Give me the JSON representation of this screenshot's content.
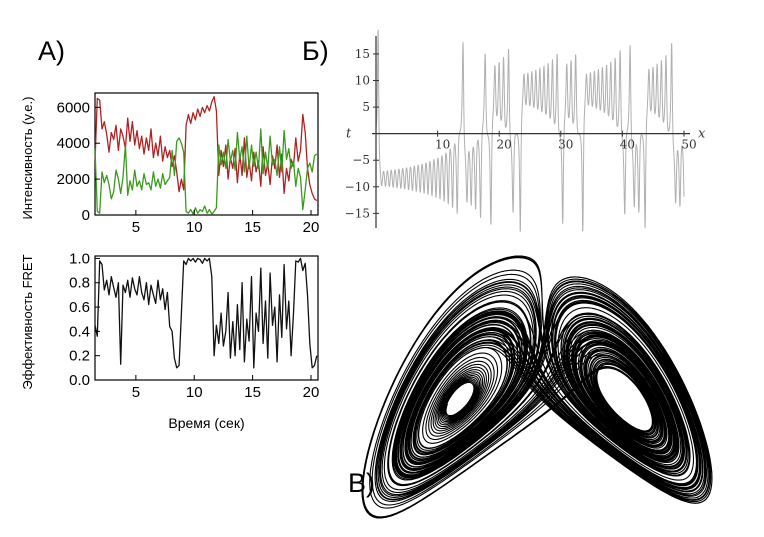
{
  "panels": {
    "a_label": "А)",
    "b_label": "Б)",
    "v_label": "В)"
  },
  "chart_data": [
    {
      "id": "intensity",
      "type": "line",
      "xlabel": "",
      "ylabel": "Интенсивность (у.е.)",
      "xlim": [
        1.5,
        20.6
      ],
      "ylim": [
        0,
        6800
      ],
      "xticks": [
        5,
        10,
        15,
        20
      ],
      "yticks": [
        0,
        2000,
        4000,
        6000
      ],
      "grid": false,
      "colors": {
        "red": "#b02222",
        "green": "#3a9a1e"
      },
      "series": [
        {
          "color": "#b02222",
          "x": [
            1.5,
            1.7,
            1.9,
            2.1,
            2.3,
            2.5,
            2.7,
            2.9,
            3.1,
            3.3,
            3.5,
            3.7,
            3.9,
            4.1,
            4.3,
            4.5,
            4.7,
            4.9,
            5.1,
            5.3,
            5.5,
            5.7,
            5.9,
            6.1,
            6.3,
            6.5,
            6.7,
            6.9,
            7.1,
            7.3,
            7.5,
            7.7,
            7.9,
            8.1,
            8.3,
            8.5,
            8.7,
            8.9,
            9.1,
            9.3,
            9.5,
            9.7,
            9.9,
            10.1,
            10.3,
            10.5,
            10.7,
            10.9,
            11.1,
            11.3,
            11.5,
            11.7,
            11.9,
            12.1,
            12.3,
            12.5,
            12.7,
            12.9,
            13.1,
            13.3,
            13.5,
            13.7,
            13.9,
            14.1,
            14.3,
            14.5,
            14.7,
            14.9,
            15.1,
            15.3,
            15.5,
            15.7,
            15.9,
            16.1,
            16.3,
            16.5,
            16.7,
            16.9,
            17.1,
            17.3,
            17.5,
            17.7,
            17.9,
            18.1,
            18.3,
            18.5,
            18.7,
            18.9,
            19.1,
            19.3,
            19.5,
            19.7,
            19.9,
            20.1,
            20.3,
            20.5
          ],
          "values": [
            3000,
            6500,
            6400,
            4800,
            5200,
            4500,
            3500,
            4600,
            4200,
            5000,
            3600,
            4800,
            4400,
            3700,
            5400,
            4100,
            5200,
            3900,
            4700,
            3700,
            4400,
            3400,
            4300,
            3600,
            4800,
            3200,
            4000,
            3300,
            4400,
            3000,
            3800,
            3200,
            3600,
            2700,
            3300,
            2400,
            1300,
            2000,
            1400,
            5000,
            5600,
            5100,
            5700,
            5300,
            5900,
            5500,
            6000,
            5700,
            6100,
            5800,
            6300,
            6600,
            5800,
            2200,
            3600,
            2700,
            3900,
            2000,
            3200,
            2600,
            3700,
            1800,
            3400,
            2200,
            4300,
            2100,
            3000,
            1900,
            3500,
            2400,
            3000,
            1600,
            3800,
            2200,
            2900,
            1700,
            3300,
            2600,
            3900,
            2100,
            3400,
            1200,
            2600,
            1900,
            3100,
            2700,
            4300,
            3000,
            3600,
            5600,
            4600,
            2600,
            1700,
            1200,
            900,
            800
          ]
        },
        {
          "color": "#3a9a1e",
          "x": [
            1.5,
            1.7,
            1.9,
            2.1,
            2.3,
            2.5,
            2.7,
            2.9,
            3.1,
            3.3,
            3.5,
            3.7,
            3.9,
            4.1,
            4.3,
            4.5,
            4.7,
            4.9,
            5.1,
            5.3,
            5.5,
            5.7,
            5.9,
            6.1,
            6.3,
            6.5,
            6.7,
            6.9,
            7.1,
            7.3,
            7.5,
            7.7,
            7.9,
            8.1,
            8.3,
            8.5,
            8.7,
            8.9,
            9.1,
            9.3,
            9.5,
            9.7,
            9.9,
            10.1,
            10.3,
            10.5,
            10.7,
            10.9,
            11.1,
            11.3,
            11.5,
            11.7,
            11.9,
            12.1,
            12.3,
            12.5,
            12.7,
            12.9,
            13.1,
            13.3,
            13.5,
            13.7,
            13.9,
            14.1,
            14.3,
            14.5,
            14.7,
            14.9,
            15.1,
            15.3,
            15.5,
            15.7,
            15.9,
            16.1,
            16.3,
            16.5,
            16.7,
            16.9,
            17.1,
            17.3,
            17.5,
            17.7,
            17.9,
            18.1,
            18.3,
            18.5,
            18.7,
            18.9,
            19.1,
            19.3,
            19.5,
            19.7,
            19.9,
            20.1,
            20.3,
            20.5
          ],
          "values": [
            3700,
            200,
            100,
            2400,
            1800,
            2200,
            1700,
            900,
            1300,
            2500,
            2000,
            1200,
            2100,
            3900,
            1100,
            1900,
            1400,
            2500,
            1600,
            1900,
            1400,
            2300,
            1700,
            1800,
            1400,
            2400,
            1600,
            2000,
            1500,
            2300,
            1700,
            1900,
            2100,
            3600,
            2200,
            4100,
            4300,
            4000,
            3500,
            200,
            100,
            300,
            50,
            400,
            100,
            300,
            200,
            500,
            100,
            300,
            50,
            200,
            400,
            3900,
            2800,
            3500,
            2600,
            4200,
            3000,
            3600,
            2500,
            4600,
            3100,
            3800,
            2400,
            4400,
            2600,
            3900,
            2700,
            3500,
            2600,
            4800,
            2300,
            3500,
            2600,
            4400,
            2800,
            3100,
            2200,
            3800,
            2400,
            4700,
            3100,
            3700,
            2600,
            3000,
            1600,
            2600,
            2100,
            300,
            1400,
            2600,
            2900,
            2400,
            3300,
            3400
          ]
        }
      ]
    },
    {
      "id": "fret",
      "type": "line",
      "xlabel": "Время (сек)",
      "ylabel": "Эффективность FRET",
      "xlim": [
        1.5,
        20.6
      ],
      "ylim": [
        0,
        1.02
      ],
      "xticks": [
        5,
        10,
        15,
        20
      ],
      "yticks": [
        0.0,
        0.2,
        0.4,
        0.6,
        0.8,
        1.0
      ],
      "grid": false,
      "series": [
        {
          "color": "#111111",
          "x": [
            1.5,
            1.7,
            1.9,
            2.1,
            2.3,
            2.5,
            2.7,
            2.9,
            3.1,
            3.3,
            3.5,
            3.7,
            3.9,
            4.1,
            4.3,
            4.5,
            4.7,
            4.9,
            5.1,
            5.3,
            5.5,
            5.7,
            5.9,
            6.1,
            6.3,
            6.5,
            6.7,
            6.9,
            7.1,
            7.3,
            7.5,
            7.7,
            7.9,
            8.1,
            8.3,
            8.5,
            8.7,
            8.9,
            9.1,
            9.3,
            9.5,
            9.7,
            9.9,
            10.1,
            10.3,
            10.5,
            10.7,
            10.9,
            11.1,
            11.3,
            11.5,
            11.7,
            11.9,
            12.1,
            12.3,
            12.5,
            12.7,
            12.9,
            13.1,
            13.3,
            13.5,
            13.7,
            13.9,
            14.1,
            14.3,
            14.5,
            14.7,
            14.9,
            15.1,
            15.3,
            15.5,
            15.7,
            15.9,
            16.1,
            16.3,
            16.5,
            16.7,
            16.9,
            17.1,
            17.3,
            17.5,
            17.7,
            17.9,
            18.1,
            18.3,
            18.5,
            18.7,
            18.9,
            19.1,
            19.3,
            19.5,
            19.7,
            19.9,
            20.1,
            20.3,
            20.5
          ],
          "values": [
            0.45,
            0.36,
            0.98,
            0.95,
            0.74,
            0.82,
            0.7,
            0.85,
            0.76,
            0.68,
            0.8,
            0.13,
            0.78,
            0.72,
            0.82,
            0.68,
            0.84,
            0.75,
            0.7,
            0.85,
            0.72,
            0.66,
            0.8,
            0.62,
            0.78,
            0.7,
            0.63,
            0.82,
            0.66,
            0.75,
            0.58,
            0.72,
            0.44,
            0.4,
            0.18,
            0.1,
            0.12,
            0.55,
            0.98,
            0.95,
            1.0,
            0.98,
            1.0,
            0.97,
            1.0,
            0.99,
            0.96,
            1.0,
            0.98,
            1.0,
            0.85,
            0.2,
            0.45,
            0.3,
            0.55,
            0.28,
            0.4,
            0.72,
            0.18,
            0.48,
            0.2,
            0.62,
            0.25,
            0.8,
            0.15,
            0.5,
            0.32,
            0.85,
            0.1,
            0.55,
            0.4,
            0.92,
            0.3,
            0.65,
            0.18,
            0.88,
            0.45,
            0.6,
            0.15,
            0.7,
            0.35,
            0.95,
            0.42,
            0.65,
            0.2,
            0.55,
            0.98,
            0.97,
            1.0,
            0.9,
            0.96,
            0.7,
            0.3,
            0.1,
            0.12,
            0.2
          ]
        }
      ]
    },
    {
      "id": "lorenz_x",
      "type": "line",
      "xlabel": "x",
      "ylabel": "t",
      "xlim": [
        0,
        50
      ],
      "ylim": [
        -17,
        18
      ],
      "xticks": [
        10,
        20,
        30,
        40,
        50
      ],
      "yticks": [
        -15,
        -10,
        -5,
        5,
        10,
        15
      ],
      "grid": false,
      "series": [
        {
          "color": "#b0b0b0",
          "sigma": 10,
          "rho": 28,
          "beta": 2.6667,
          "x0": 1,
          "y0": 1,
          "z0": 1
        }
      ]
    },
    {
      "id": "lorenz_attractor",
      "type": "line",
      "xlabel": "",
      "ylabel": "",
      "grid": false,
      "series": [
        {
          "color": "#000000",
          "sigma": 10,
          "rho": 28,
          "beta": 2.6667,
          "x0": 1,
          "y0": 1,
          "z0": 1,
          "view": "x-z"
        }
      ]
    }
  ]
}
